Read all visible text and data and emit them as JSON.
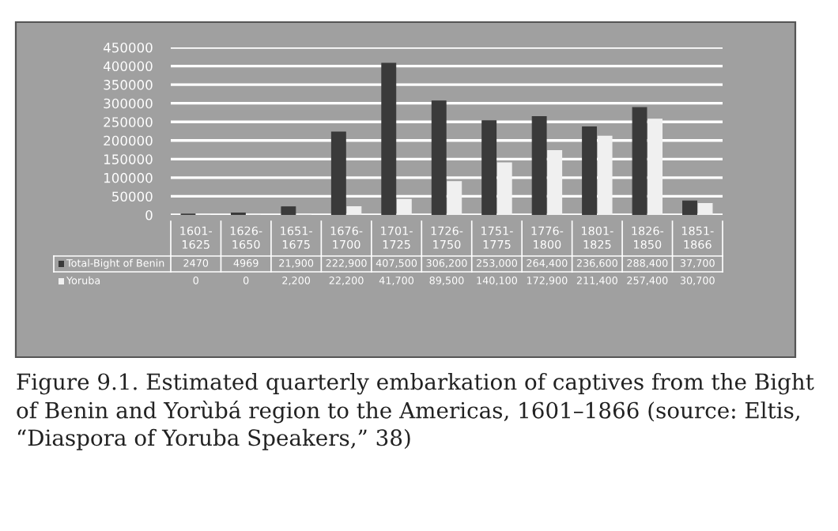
{
  "chart_data": {
    "type": "bar",
    "categories": [
      "1601-1625",
      "1626-1650",
      "1651-1675",
      "1676-1700",
      "1701-1725",
      "1726-1750",
      "1751-1775",
      "1776-1800",
      "1801-1825",
      "1826-1850",
      "1851-1866"
    ],
    "series": [
      {
        "name": "Total-Bight of Benin",
        "color": "#3a3a3a",
        "values": [
          2470,
          4969,
          21900,
          222900,
          407500,
          306200,
          253000,
          264400,
          236600,
          288400,
          37700
        ],
        "value_labels": [
          "2470",
          "4969",
          "21,900",
          "222,900",
          "407,500",
          "306,200",
          "253,000",
          "264,400",
          "236,600",
          "288,400",
          "37,700"
        ]
      },
      {
        "name": "Yoruba",
        "color": "#f0f0f0",
        "values": [
          0,
          0,
          2200,
          22200,
          41700,
          89500,
          140100,
          172900,
          211400,
          257400,
          30700
        ],
        "value_labels": [
          "0",
          "0",
          "2,200",
          "22,200",
          "41,700",
          "89,500",
          "140,100",
          "172,900",
          "211,400",
          "257,400",
          "30,700"
        ]
      }
    ],
    "ylim": [
      0,
      450000
    ],
    "yticks": [
      0,
      50000,
      100000,
      150000,
      200000,
      250000,
      300000,
      350000,
      400000,
      450000
    ],
    "grid": "y",
    "legend": "bottom left",
    "annotations": [
      "Figure 9.1. Estimated quarterly embarkation of captives from the Bight of Benin and Yorùbá region to the Americas, 1601–1866 (source: Eltis, “Diaspora of Yoruba Speakers,” 38)"
    ]
  }
}
